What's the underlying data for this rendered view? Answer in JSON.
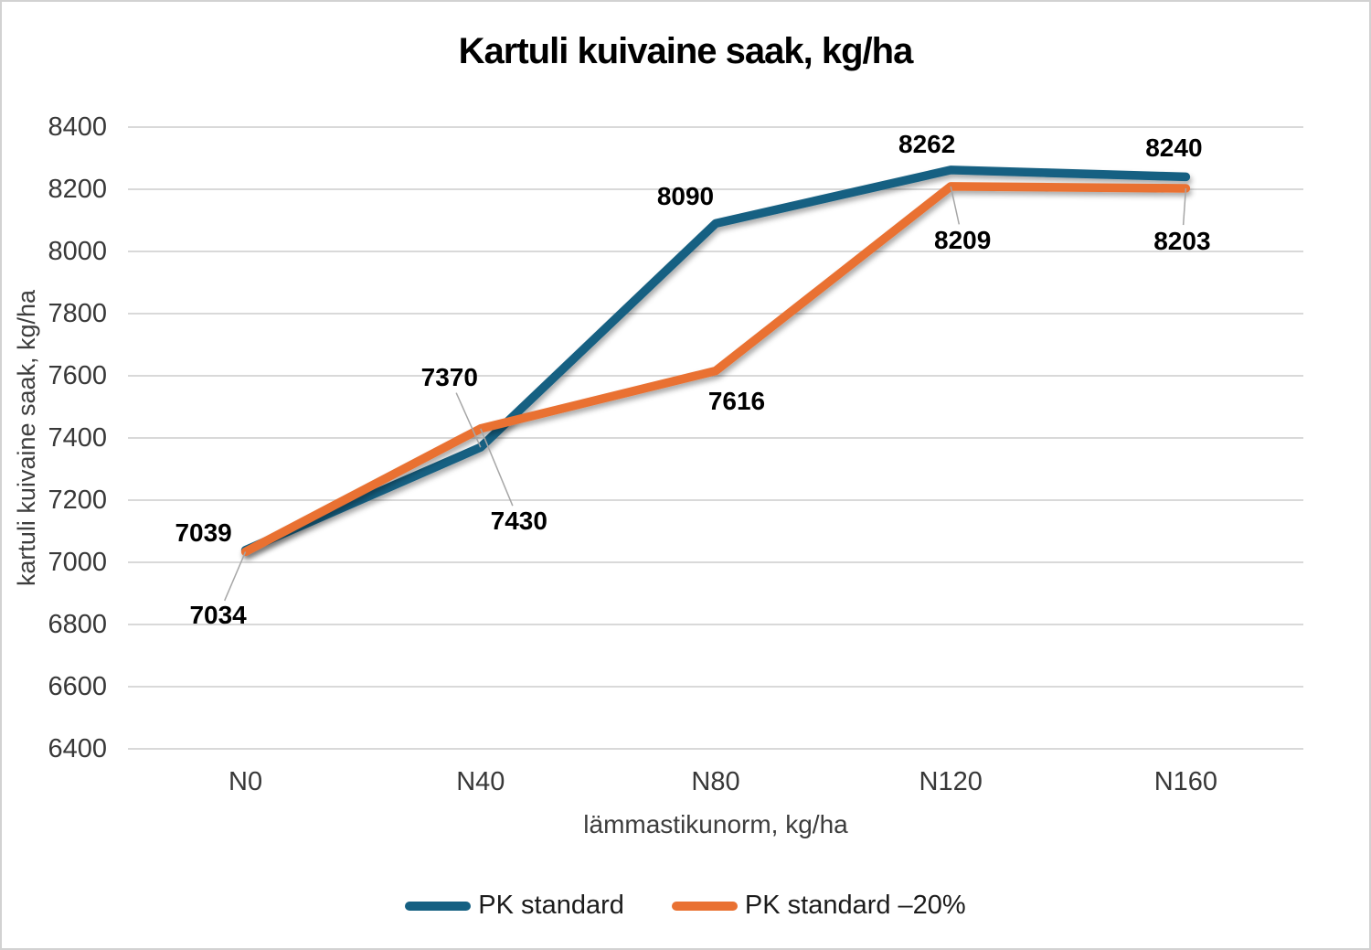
{
  "chart_data": {
    "type": "line",
    "title": "Kartuli kuivaine saak, kg/ha",
    "xlabel": "lämmastikunorm, kg/ha",
    "ylabel": "kartuli kuivaine saak, kg/ha",
    "categories": [
      "N0",
      "N40",
      "N80",
      "N120",
      "N160"
    ],
    "series": [
      {
        "name": "PK standard",
        "color": "#156082",
        "values": [
          7039,
          7370,
          8090,
          8262,
          8240
        ]
      },
      {
        "name": "PK standard –20%",
        "color": "#E97132",
        "values": [
          7034,
          7430,
          7616,
          8209,
          8203
        ]
      }
    ],
    "ylim": [
      6400,
      8400
    ],
    "ytick_step": 200,
    "yticks": [
      6400,
      6600,
      6800,
      7000,
      7200,
      7400,
      7600,
      7800,
      8000,
      8200,
      8400
    ],
    "grid": true,
    "data_labels": true,
    "legend_position": "bottom"
  },
  "colors": {
    "gridline": "#D9D9D9",
    "leader_line": "#A6A6A6",
    "axis_text": "#3d3d3d",
    "data_label_text": "#000000",
    "frame_border": "#D2D2D2",
    "background": "#FFFFFF"
  }
}
